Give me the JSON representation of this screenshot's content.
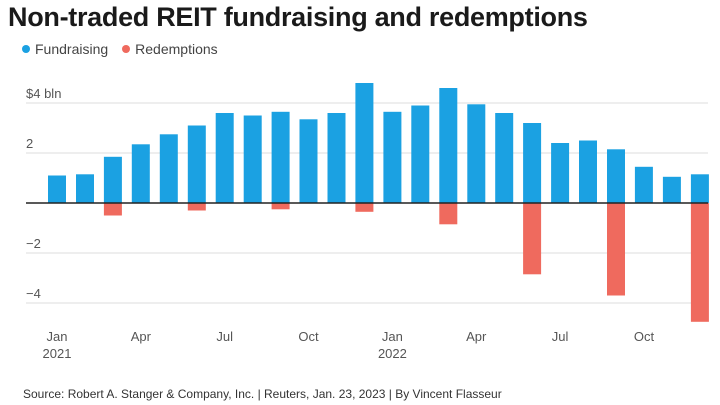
{
  "chart_data": {
    "type": "bar",
    "title": "Non-traded REIT fundraising and redemptions",
    "units": "$ bln",
    "months": [
      "Jan 2021",
      "Feb 2021",
      "Mar 2021",
      "Apr 2021",
      "May 2021",
      "Jun 2021",
      "Jul 2021",
      "Aug 2021",
      "Sep 2021",
      "Oct 2021",
      "Nov 2021",
      "Dec 2021",
      "Jan 2022",
      "Feb 2022",
      "Mar 2022",
      "Apr 2022",
      "May 2022",
      "Jun 2022",
      "Jul 2022",
      "Aug 2022",
      "Sep 2022",
      "Oct 2022",
      "Nov 2022",
      "Dec 2022"
    ],
    "series": [
      {
        "name": "Fundraising",
        "color": "#1ba1e2",
        "values": [
          1.1,
          1.15,
          1.85,
          2.35,
          2.75,
          3.1,
          3.6,
          3.5,
          3.65,
          3.35,
          3.6,
          4.8,
          3.65,
          3.9,
          4.6,
          3.95,
          3.6,
          3.2,
          2.4,
          2.5,
          2.15,
          1.45,
          1.05,
          1.15
        ]
      },
      {
        "name": "Redemptions",
        "color": "#ef6a5e",
        "values": [
          0,
          0,
          -0.5,
          0,
          0,
          -0.3,
          0,
          0,
          -0.25,
          0,
          0,
          -0.35,
          0,
          0,
          -0.85,
          0,
          0,
          -2.85,
          0,
          0,
          -3.7,
          0,
          0,
          -4.75
        ]
      }
    ],
    "yticks": [
      {
        "value": 4,
        "label": "$4 bln"
      },
      {
        "value": 2,
        "label": "2"
      },
      {
        "value": 0,
        "label": ""
      },
      {
        "value": -2,
        "label": "−2"
      },
      {
        "value": -4,
        "label": "−4"
      }
    ],
    "ylim": [
      -5,
      5
    ],
    "xticks": [
      {
        "index": 0,
        "label": "Jan",
        "sub": "2021"
      },
      {
        "index": 3,
        "label": "Apr",
        "sub": ""
      },
      {
        "index": 6,
        "label": "Jul",
        "sub": ""
      },
      {
        "index": 9,
        "label": "Oct",
        "sub": ""
      },
      {
        "index": 12,
        "label": "Jan",
        "sub": "2022"
      },
      {
        "index": 15,
        "label": "Apr",
        "sub": ""
      },
      {
        "index": 18,
        "label": "Jul",
        "sub": ""
      },
      {
        "index": 21,
        "label": "Oct",
        "sub": ""
      }
    ],
    "legend_position": "top-left",
    "grid": true
  },
  "legend": {
    "fundraising_label": "Fundraising",
    "redemptions_label": "Redemptions"
  },
  "source": "Source: Robert A. Stanger & Company, Inc. | Reuters, Jan. 23, 2023 | By Vincent Flasseur"
}
